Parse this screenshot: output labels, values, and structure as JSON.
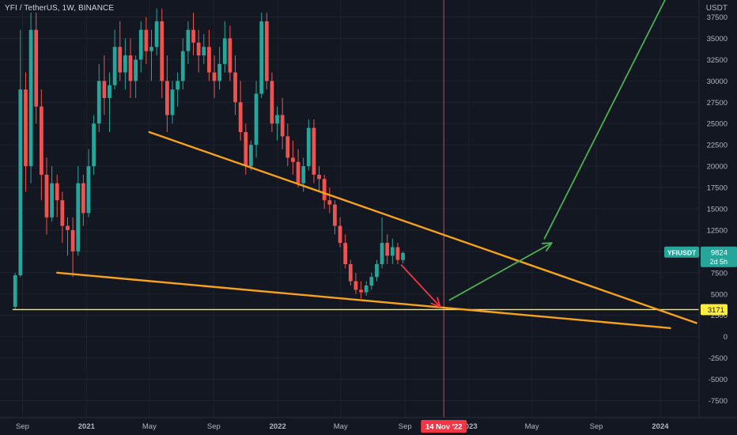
{
  "header": {
    "symbol_title": "YFI / TetherUS, 1W, BINANCE",
    "unit": "USDT"
  },
  "colors": {
    "background": "#131722",
    "grid": "#1e222d",
    "up_candle": "#26a69a",
    "down_candle": "#ef5350",
    "trendline": "#f7a21b",
    "support_line": "#ffeb3b",
    "projection_arrow": "#4caf50",
    "drop_arrow": "#f23645",
    "date_marker": "#f23645",
    "axis_text": "#b2b5be"
  },
  "chart_data": {
    "type": "candlestick",
    "symbol": "YFIUSDT",
    "exchange": "BINANCE",
    "interval": "1W",
    "x_ticks": [
      "Sep",
      "2021",
      "May",
      "Sep",
      "2022",
      "May",
      "Sep",
      "2023",
      "May",
      "Sep",
      "2024"
    ],
    "x_tick_dates": [
      "2020-09-01",
      "2021-01-01",
      "2021-05-01",
      "2021-09-01",
      "2022-01-01",
      "2022-05-01",
      "2022-09-01",
      "2023-01-01",
      "2023-05-01",
      "2023-09-01",
      "2024-01-01"
    ],
    "y_ticks": [
      -7500,
      -5000,
      -2500,
      0,
      2500,
      5000,
      7500,
      10000,
      12500,
      15000,
      17500,
      20000,
      22500,
      25000,
      27500,
      30000,
      32500,
      35000,
      37500
    ],
    "y_tick_labels": [
      "-7500",
      "-5000",
      "-2500",
      "0",
      "2500",
      "5000",
      "7500",
      "10000",
      "12500",
      "15000",
      "17500",
      "20000",
      "22500",
      "25000",
      "27500",
      "30000",
      "32500",
      "35000",
      "37500"
    ],
    "ylim": [
      -9500,
      39500
    ],
    "xlim": [
      "2020-07-20",
      "2024-03-15"
    ],
    "candles_ohlc": [
      [
        3500,
        7500,
        3200,
        7200
      ],
      [
        7200,
        36000,
        7000,
        29000
      ],
      [
        29000,
        31000,
        17000,
        20000
      ],
      [
        20000,
        38000,
        18000,
        36000
      ],
      [
        36000,
        38000,
        25000,
        27000
      ],
      [
        27000,
        29000,
        16000,
        19000
      ],
      [
        19000,
        21000,
        12000,
        14000
      ],
      [
        14000,
        20000,
        13500,
        18000
      ],
      [
        18000,
        19000,
        14000,
        16000
      ],
      [
        16000,
        17000,
        11000,
        13000
      ],
      [
        13000,
        14000,
        9500,
        12500
      ],
      [
        12500,
        14000,
        7000,
        10000
      ],
      [
        10000,
        20000,
        9500,
        18000
      ],
      [
        18000,
        19000,
        13000,
        14500
      ],
      [
        14500,
        22000,
        14000,
        20000
      ],
      [
        20000,
        26000,
        19000,
        25000
      ],
      [
        25000,
        32000,
        24000,
        30000
      ],
      [
        30000,
        33000,
        26000,
        28000
      ],
      [
        28000,
        31000,
        24000,
        29500
      ],
      [
        29500,
        36000,
        29000,
        34000
      ],
      [
        34000,
        37000,
        30000,
        31000
      ],
      [
        31000,
        35000,
        29000,
        33000
      ],
      [
        33000,
        35000,
        28000,
        30000
      ],
      [
        30000,
        33000,
        28000,
        32500
      ],
      [
        32500,
        37000,
        31000,
        36000
      ],
      [
        36000,
        37500,
        32000,
        33500
      ],
      [
        33500,
        36000,
        30000,
        34000
      ],
      [
        34000,
        38500,
        33000,
        37000
      ],
      [
        37000,
        38500,
        28000,
        30000
      ],
      [
        30000,
        33000,
        24000,
        26000
      ],
      [
        26000,
        30000,
        25000,
        29000
      ],
      [
        29000,
        31000,
        27000,
        30000
      ],
      [
        30000,
        35000,
        29000,
        33500
      ],
      [
        33500,
        37000,
        32000,
        36000
      ],
      [
        36000,
        38000,
        33000,
        34500
      ],
      [
        34500,
        36000,
        31000,
        33000
      ],
      [
        33000,
        35500,
        32000,
        34000
      ],
      [
        34000,
        36000,
        30000,
        31000
      ],
      [
        31000,
        33000,
        28000,
        30000
      ],
      [
        30000,
        34000,
        29000,
        32000
      ],
      [
        32000,
        37000,
        31000,
        35000
      ],
      [
        35000,
        36500,
        30000,
        31000
      ],
      [
        31000,
        33000,
        26000,
        27500
      ],
      [
        27500,
        30000,
        23000,
        24000
      ],
      [
        24000,
        25000,
        19000,
        20000
      ],
      [
        20000,
        23000,
        19500,
        22500
      ],
      [
        22500,
        30000,
        21000,
        28500
      ],
      [
        28500,
        38000,
        28000,
        37000
      ],
      [
        37000,
        38000,
        29000,
        30000
      ],
      [
        30000,
        31000,
        24000,
        25000
      ],
      [
        25000,
        27000,
        23000,
        26000
      ],
      [
        26000,
        28000,
        22000,
        23500
      ],
      [
        23500,
        25000,
        20000,
        21000
      ],
      [
        21000,
        23000,
        19000,
        20500
      ],
      [
        20500,
        22000,
        17500,
        18000
      ],
      [
        18000,
        21000,
        17000,
        20000
      ],
      [
        20000,
        25500,
        19500,
        24500
      ],
      [
        24500,
        25500,
        18000,
        19000
      ],
      [
        19000,
        20000,
        17000,
        18500
      ],
      [
        18500,
        19000,
        15000,
        16000
      ],
      [
        16000,
        17500,
        14500,
        15500
      ],
      [
        15500,
        16000,
        12000,
        13000
      ],
      [
        13000,
        14000,
        10500,
        11000
      ],
      [
        11000,
        12000,
        8000,
        8500
      ],
      [
        8500,
        9000,
        6000,
        6500
      ],
      [
        6500,
        7500,
        5000,
        5500
      ],
      [
        5500,
        6500,
        4500,
        5200
      ],
      [
        5200,
        6500,
        4800,
        6000
      ],
      [
        6000,
        7500,
        5500,
        7000
      ],
      [
        7000,
        9000,
        6500,
        8500
      ],
      [
        8500,
        14000,
        8000,
        11000
      ],
      [
        11000,
        12000,
        8500,
        9500
      ],
      [
        9500,
        11500,
        8500,
        10500
      ],
      [
        10500,
        11000,
        8500,
        9000
      ],
      [
        9000,
        10000,
        8600,
        9824
      ]
    ],
    "last_price": 9824,
    "last_price_label": "9824",
    "symbol_tag": "YFIUSDT",
    "countdown": "2d 5h",
    "drawings": {
      "upper_trendline": {
        "from": [
          "2021-05-01",
          24000
        ],
        "to": [
          "2024-03-10",
          1600
        ]
      },
      "lower_trendline": {
        "from": [
          "2020-11-06",
          7500
        ],
        "to": [
          "2024-01-20",
          1000
        ]
      },
      "support_level": {
        "value": 3171,
        "label": "3171",
        "from": "2020-08-13",
        "to": "2024-03-15"
      },
      "date_marker": {
        "date": "2022-11-14",
        "label": "14 Nov '22"
      },
      "drop_arrow": {
        "from": [
          "2022-08-25",
          8400
        ],
        "to": [
          "2022-11-07",
          3500
        ]
      },
      "projection_arrow_1": {
        "from": [
          "2022-11-25",
          4300
        ],
        "to": [
          "2023-06-08",
          11000
        ]
      },
      "projection_arrow_2": {
        "from": [
          "2023-05-25",
          11500
        ],
        "to": [
          "2024-01-10",
          39500
        ]
      }
    }
  }
}
